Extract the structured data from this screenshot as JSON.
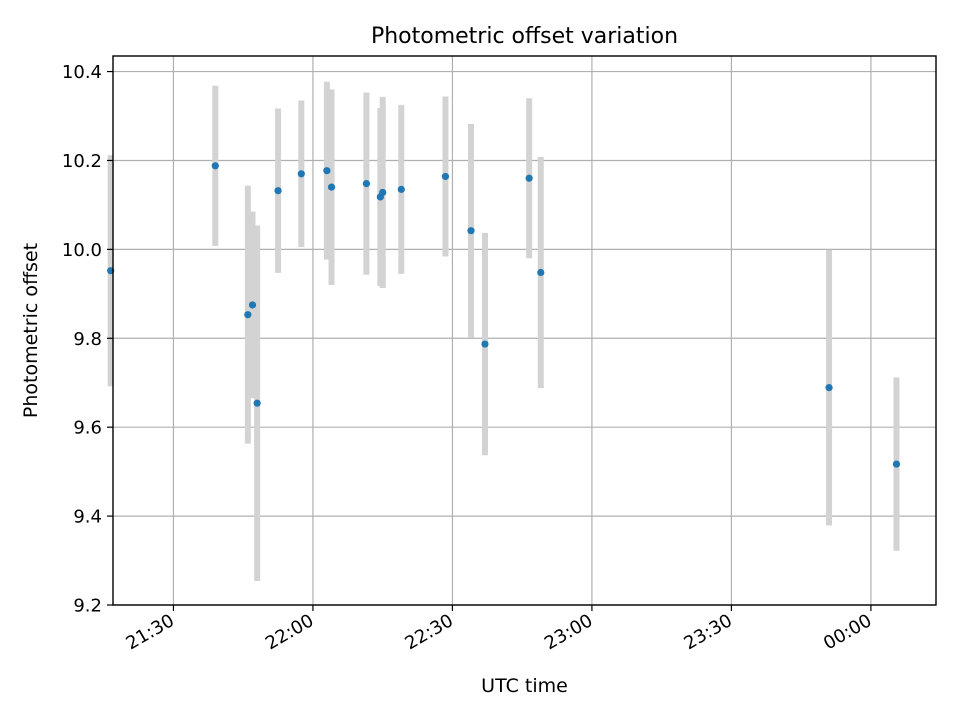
{
  "chart_data": {
    "type": "scatter",
    "title": "Photometric offset variation",
    "xlabel": "UTC time",
    "ylabel": "Photometric offset",
    "x_unit": "HH:MM UTC",
    "xlim": [
      "21:17",
      "00:14"
    ],
    "ylim": [
      9.2,
      10.435
    ],
    "x_ticks": [
      "21:30",
      "22:00",
      "22:30",
      "23:00",
      "23:30",
      "00:00"
    ],
    "y_ticks": [
      9.2,
      9.4,
      9.6,
      9.8,
      10.0,
      10.2,
      10.4
    ],
    "y_tick_labels": [
      "9.2",
      "9.4",
      "9.6",
      "9.8",
      "10.0",
      "10.2",
      "10.4"
    ],
    "grid": true,
    "series": [
      {
        "marker_color": "#1f77b4",
        "errorbar_color": "#d3d3d3",
        "points": [
          {
            "x": "21:16:30",
            "y": 9.952,
            "err": 0.26
          },
          {
            "x": "21:39:00",
            "y": 10.188,
            "err": 0.18
          },
          {
            "x": "21:46:00",
            "y": 9.853,
            "err": 0.29
          },
          {
            "x": "21:47:00",
            "y": 9.875,
            "err": 0.21
          },
          {
            "x": "21:48:00",
            "y": 9.654,
            "err": 0.4
          },
          {
            "x": "21:52:30",
            "y": 10.132,
            "err": 0.185
          },
          {
            "x": "21:57:30",
            "y": 10.17,
            "err": 0.165
          },
          {
            "x": "22:03:00",
            "y": 10.177,
            "err": 0.2
          },
          {
            "x": "22:04:00",
            "y": 10.14,
            "err": 0.22
          },
          {
            "x": "22:11:30",
            "y": 10.148,
            "err": 0.205
          },
          {
            "x": "22:14:30",
            "y": 10.118,
            "err": 0.2
          },
          {
            "x": "22:15:00",
            "y": 10.128,
            "err": 0.215
          },
          {
            "x": "22:19:00",
            "y": 10.135,
            "err": 0.19
          },
          {
            "x": "22:28:30",
            "y": 10.164,
            "err": 0.18
          },
          {
            "x": "22:34:00",
            "y": 10.042,
            "err": 0.24
          },
          {
            "x": "22:37:00",
            "y": 9.787,
            "err": 0.25
          },
          {
            "x": "22:46:30",
            "y": 10.16,
            "err": 0.18
          },
          {
            "x": "22:49:00",
            "y": 9.948,
            "err": 0.26
          },
          {
            "x": "23:51:00",
            "y": 9.689,
            "err": 0.31
          },
          {
            "x": "00:05:30",
            "y": 9.517,
            "err": 0.195
          }
        ]
      }
    ]
  }
}
